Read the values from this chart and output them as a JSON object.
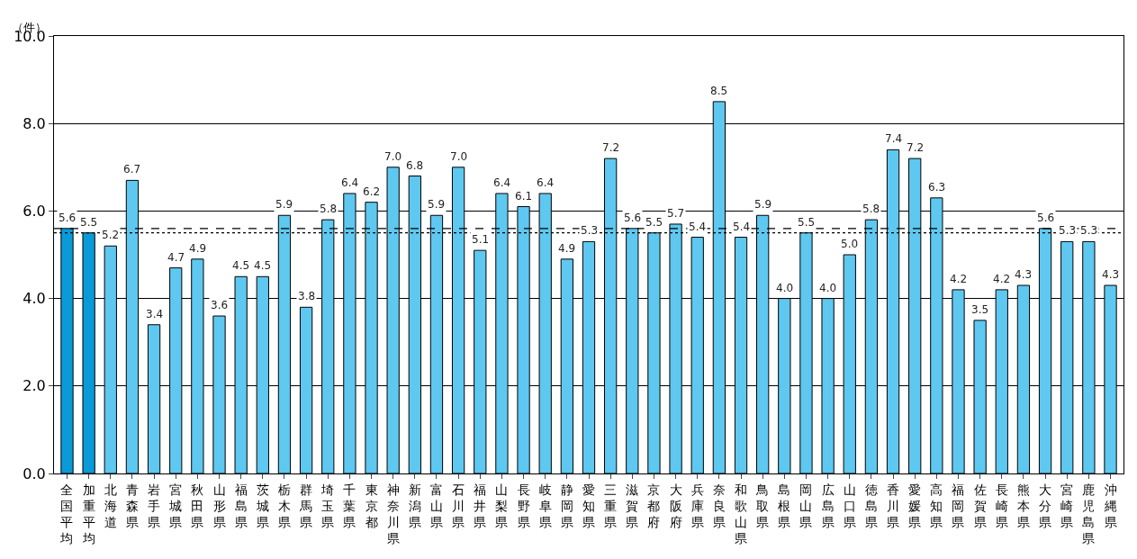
{
  "chart_data": {
    "type": "bar",
    "ylabel": "（件）",
    "categories": [
      "全国平均",
      "加重平均",
      "北海道",
      "青森県",
      "岩手県",
      "宮城県",
      "秋田県",
      "山形県",
      "福島県",
      "茨城県",
      "栃木県",
      "群馬県",
      "埼玉県",
      "千葉県",
      "東京都",
      "神奈川県",
      "新潟県",
      "富山県",
      "石川県",
      "福井県",
      "山梨県",
      "長野県",
      "岐阜県",
      "静岡県",
      "愛知県",
      "三重県",
      "滋賀県",
      "京都府",
      "大阪府",
      "兵庫県",
      "奈良県",
      "和歌山県",
      "鳥取県",
      "島根県",
      "岡山県",
      "広島県",
      "山口県",
      "徳島県",
      "香川県",
      "愛媛県",
      "高知県",
      "福岡県",
      "佐賀県",
      "長崎県",
      "熊本県",
      "大分県",
      "宮崎県",
      "鹿児島県",
      "沖縄県"
    ],
    "values": [
      5.6,
      5.5,
      5.2,
      6.7,
      3.4,
      4.7,
      4.9,
      3.6,
      4.5,
      4.5,
      5.9,
      3.8,
      5.8,
      6.4,
      6.2,
      7.0,
      6.8,
      5.9,
      7.0,
      5.1,
      6.4,
      6.1,
      6.4,
      4.9,
      5.3,
      7.2,
      5.6,
      5.5,
      5.7,
      5.4,
      8.5,
      5.4,
      5.9,
      4.0,
      5.5,
      4.0,
      5.0,
      5.8,
      7.4,
      7.2,
      6.3,
      4.2,
      3.5,
      4.2,
      4.3,
      5.6,
      5.3,
      5.3,
      4.3
    ],
    "colors": [
      "#0a9ad8",
      "#0a9ad8",
      "#5ec8f0",
      "#5ec8f0",
      "#5ec8f0",
      "#5ec8f0",
      "#5ec8f0",
      "#5ec8f0",
      "#5ec8f0",
      "#5ec8f0",
      "#5ec8f0",
      "#5ec8f0",
      "#5ec8f0",
      "#5ec8f0",
      "#5ec8f0",
      "#5ec8f0",
      "#5ec8f0",
      "#5ec8f0",
      "#5ec8f0",
      "#5ec8f0",
      "#5ec8f0",
      "#5ec8f0",
      "#5ec8f0",
      "#5ec8f0",
      "#5ec8f0",
      "#5ec8f0",
      "#5ec8f0",
      "#5ec8f0",
      "#5ec8f0",
      "#5ec8f0",
      "#5ec8f0",
      "#5ec8f0",
      "#5ec8f0",
      "#5ec8f0",
      "#5ec8f0",
      "#5ec8f0",
      "#5ec8f0",
      "#5ec8f0",
      "#5ec8f0",
      "#5ec8f0",
      "#5ec8f0",
      "#5ec8f0",
      "#5ec8f0",
      "#5ec8f0",
      "#5ec8f0",
      "#5ec8f0",
      "#5ec8f0",
      "#5ec8f0",
      "#5ec8f0"
    ],
    "ylim": [
      0,
      10
    ],
    "yticks": [
      {
        "value": 0,
        "label": "0.0"
      },
      {
        "value": 2,
        "label": "2.0"
      },
      {
        "value": 4,
        "label": "4.0"
      },
      {
        "value": 6,
        "label": "6.0"
      },
      {
        "value": 8,
        "label": "8.0"
      },
      {
        "value": 10,
        "label": "10.0"
      }
    ],
    "ref_lines": [
      {
        "axis": "y",
        "value": 5.6,
        "color": "#000000",
        "line_style": "dashed"
      },
      {
        "axis": "y",
        "value": 5.5,
        "color": "#000000",
        "line_style": "dotted"
      }
    ],
    "value_labels": [
      "5.6",
      "5.5",
      "5.2",
      "6.7",
      "3.4",
      "4.7",
      "4.9",
      "3.6",
      "4.5",
      "4.5",
      "5.9",
      "3.8",
      "5.8",
      "6.4",
      "6.2",
      "7.0",
      "6.8",
      "5.9",
      "7.0",
      "5.1",
      "6.4",
      "6.1",
      "6.4",
      "4.9",
      "5.3",
      "7.2",
      "5.6",
      "5.5",
      "5.7",
      "5.4",
      "8.5",
      "5.4",
      "5.9",
      "4.0",
      "5.5",
      "4.0",
      "5.0",
      "5.8",
      "7.4",
      "7.2",
      "6.3",
      "4.2",
      "3.5",
      "4.2",
      "4.3",
      "5.6",
      "5.3",
      "5.3",
      "4.3"
    ],
    "grid": "y"
  }
}
